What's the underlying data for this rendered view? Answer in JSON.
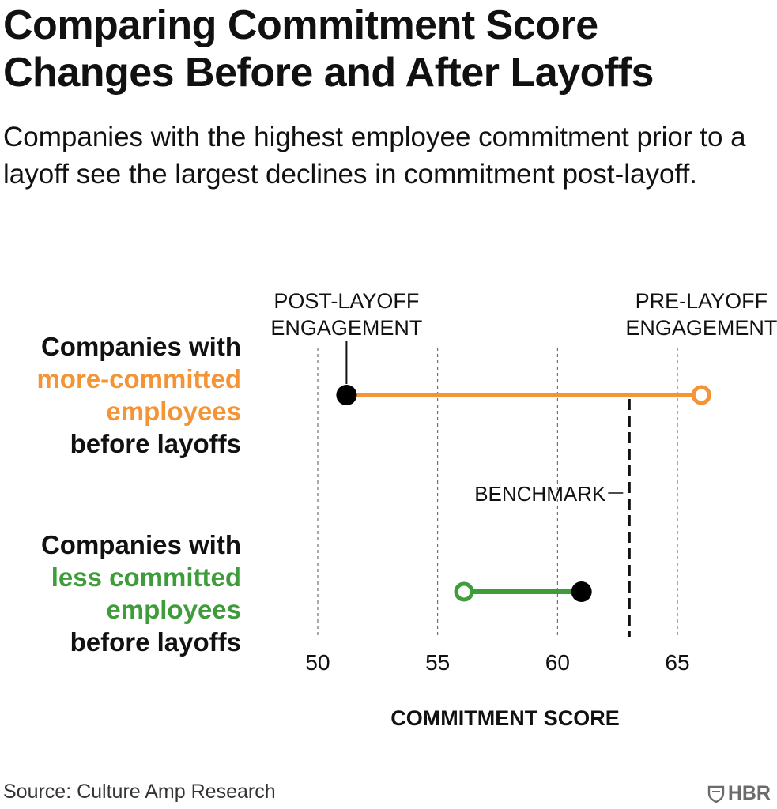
{
  "title": "Comparing Commitment Score Changes Before and After Layoffs",
  "subtitle": "Companies with the highest employee commitment prior to a layoff see the largest declines in commitment post-layoff.",
  "source": "Source: Culture Amp Research",
  "logo": "HBR",
  "colors": {
    "more_committed": "#f39436",
    "less_committed": "#3e9c3a",
    "dot_fill": "#000000",
    "text": "#111111",
    "grid": "#555555"
  },
  "row_labels": {
    "more": {
      "line1": "Companies with",
      "line2": "more-committed",
      "line3": "employees",
      "line4": "before layoffs"
    },
    "less": {
      "line1": "Companies with",
      "line2": "less committed",
      "line3": "employees",
      "line4": "before layoffs"
    }
  },
  "chart_data": {
    "type": "dumbbell",
    "title": "",
    "xlabel": "COMMITMENT SCORE",
    "ylabel": "",
    "xlim": [
      50,
      65
    ],
    "xticks": [
      50,
      55,
      60,
      65
    ],
    "grid": true,
    "legend_annotations": {
      "post": [
        "POST-LAYOFF",
        "ENGAGEMENT"
      ],
      "pre": [
        "PRE-LAYOFF",
        "ENGAGEMENT"
      ]
    },
    "benchmark": {
      "label": "BENCHMARK",
      "value": 63
    },
    "series": [
      {
        "name": "Companies with more-committed employees before layoffs",
        "pre": 66,
        "post": 51.2,
        "color": "#f39436"
      },
      {
        "name": "Companies with less committed employees before layoffs",
        "pre": 56.1,
        "post": 61,
        "color": "#3e9c3a"
      }
    ]
  }
}
